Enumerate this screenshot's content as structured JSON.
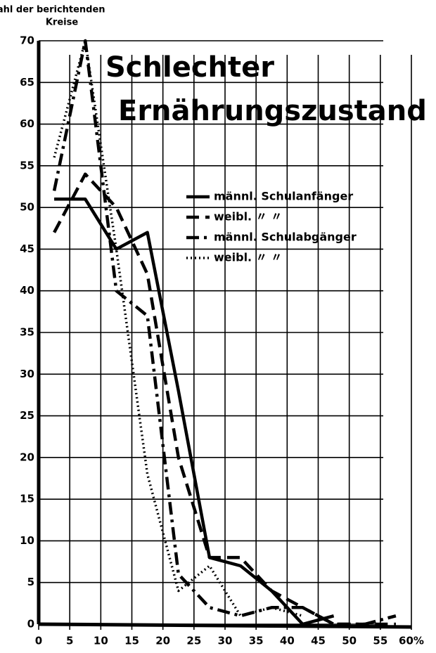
{
  "chart_data": {
    "type": "line",
    "title": [
      "Schlechter",
      "Ernährungszustand"
    ],
    "y_label": [
      "Zahl der berichtenden",
      "Kreise"
    ],
    "xlim": [
      0,
      60
    ],
    "xticks": [
      0,
      5,
      10,
      15,
      20,
      25,
      30,
      35,
      40,
      45,
      50,
      55,
      {
        "value": 60,
        "label": "60%"
      }
    ],
    "ylim": [
      0,
      70
    ],
    "yticks": [
      0,
      5,
      10,
      15,
      20,
      25,
      30,
      35,
      40,
      45,
      50,
      55,
      60,
      65,
      70
    ],
    "grid": true,
    "x": [
      2.5,
      7.5,
      12.5,
      17.5,
      22.5,
      27.5,
      32.5,
      37.5,
      42.5,
      47.5,
      52.5,
      57.5
    ],
    "series": [
      {
        "name": "männl. Schulanfänger",
        "color": "#000000",
        "style": "solid",
        "values": [
          51,
          51,
          45,
          47,
          28,
          8,
          7,
          4,
          0,
          1,
          null,
          null
        ]
      },
      {
        "name": "weibl.  〃  〃",
        "color": "#000000",
        "style": "dash",
        "values": [
          47,
          54,
          50,
          42,
          20,
          8,
          8,
          4,
          2,
          0,
          0,
          0
        ]
      },
      {
        "name": "männl. Schulabgänger",
        "color": "#000000",
        "style": "dashdot",
        "values": [
          52,
          70,
          40,
          37,
          6,
          2,
          1,
          2,
          2,
          0,
          0,
          1
        ]
      },
      {
        "name": "weibl.  〃  〃",
        "color": "#000000",
        "style": "dot",
        "values": [
          56,
          70,
          45,
          18,
          4,
          7,
          1,
          2,
          1,
          null,
          null,
          null
        ]
      }
    ]
  }
}
